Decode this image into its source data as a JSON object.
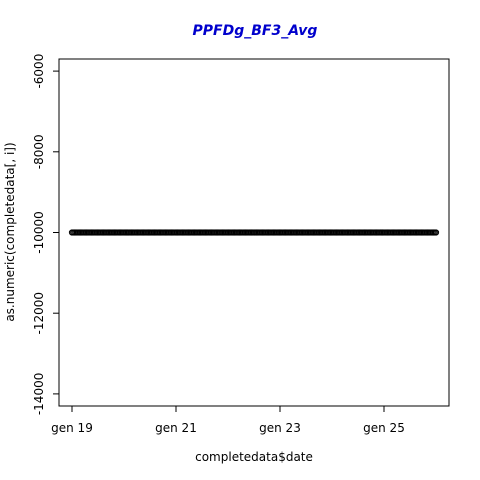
{
  "chart_data": {
    "type": "scatter",
    "title": "PPFDg_BF3_Avg",
    "xlabel": "completedata$date",
    "ylabel": "as.numeric(completedata[, i])",
    "x_ticks": [
      "gen 19",
      "gen 21",
      "gen 23",
      "gen 25"
    ],
    "y_ticks": [
      "-6000",
      "-8000",
      "-10000",
      "-12000",
      "-14000"
    ],
    "x_tick_values": [
      19,
      21,
      23,
      25
    ],
    "y_tick_values": [
      -6000,
      -8000,
      -10000,
      -12000,
      -14000
    ],
    "xlim": [
      18.75,
      26.25
    ],
    "ylim": [
      -14300,
      -5700
    ],
    "x_range": [
      19,
      26
    ],
    "y_value": -10000,
    "point_color": "#000000",
    "title_color": "#0000cc"
  }
}
